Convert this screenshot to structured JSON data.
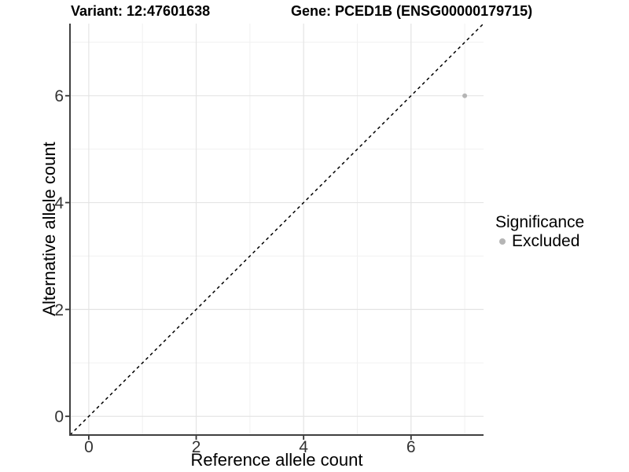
{
  "chart_data": {
    "type": "scatter",
    "title_left": "Variant: 12:47601638",
    "title_right": "Gene: PCED1B (ENSG00000179715)",
    "xlabel": "Reference allele count",
    "ylabel": "Alternative allele count",
    "xlim": [
      -0.35,
      7.35
    ],
    "ylim": [
      -0.35,
      7.35
    ],
    "xticks": [
      0,
      2,
      4,
      6
    ],
    "yticks": [
      0,
      2,
      4,
      6
    ],
    "xminor": [
      1,
      3,
      5,
      7
    ],
    "yminor": [
      1,
      3,
      5,
      7
    ],
    "grid": true,
    "points": [
      {
        "x": 7,
        "y": 6,
        "series": "Excluded"
      }
    ],
    "reference_line": {
      "kind": "identity",
      "style": "dashed",
      "x1": -0.35,
      "y1": -0.35,
      "x2": 7.35,
      "y2": 7.35
    },
    "legend": {
      "title": "Significance",
      "position": "right",
      "items": [
        {
          "label": "Excluded",
          "color": "#b5b5b5"
        }
      ]
    },
    "colors": {
      "point": "#b5b5b5",
      "grid_major": "#e4e4e4",
      "grid_minor": "#f1f1f1",
      "axis_line": "#404040",
      "tick": "#333333",
      "tick_label": "#333333",
      "reference_line": "#000000",
      "background": "#ffffff"
    }
  }
}
